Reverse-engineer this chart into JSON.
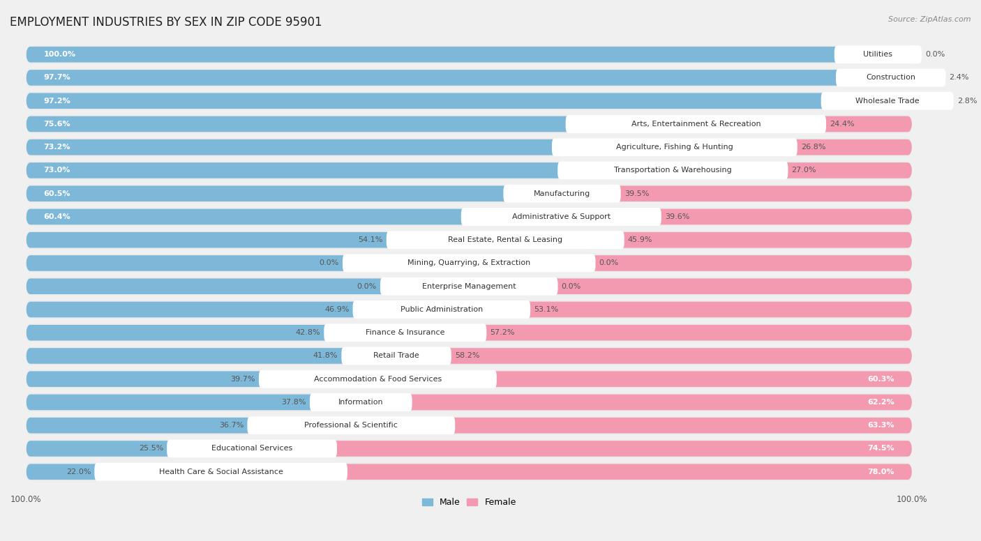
{
  "title": "EMPLOYMENT INDUSTRIES BY SEX IN ZIP CODE 95901",
  "source": "Source: ZipAtlas.com",
  "male_color": "#7eb8d8",
  "female_color": "#f49ab0",
  "bg_color": "#f0f0f0",
  "row_bg_color": "#e8e8e8",
  "bar_bg_light": "#f8f8f8",
  "label_bg": "#ffffff",
  "categories": [
    "Utilities",
    "Construction",
    "Wholesale Trade",
    "Arts, Entertainment & Recreation",
    "Agriculture, Fishing & Hunting",
    "Transportation & Warehousing",
    "Manufacturing",
    "Administrative & Support",
    "Real Estate, Rental & Leasing",
    "Mining, Quarrying, & Extraction",
    "Enterprise Management",
    "Public Administration",
    "Finance & Insurance",
    "Retail Trade",
    "Accommodation & Food Services",
    "Information",
    "Professional & Scientific",
    "Educational Services",
    "Health Care & Social Assistance"
  ],
  "male_pct": [
    100.0,
    97.7,
    97.2,
    75.6,
    73.2,
    73.0,
    60.5,
    60.4,
    54.1,
    0.0,
    0.0,
    46.9,
    42.8,
    41.8,
    39.7,
    37.8,
    36.7,
    25.5,
    22.0
  ],
  "female_pct": [
    0.0,
    2.4,
    2.8,
    24.4,
    26.8,
    27.0,
    39.5,
    39.6,
    45.9,
    0.0,
    0.0,
    53.1,
    57.2,
    58.2,
    60.3,
    62.2,
    63.3,
    74.5,
    78.0
  ],
  "title_fontsize": 12,
  "label_fontsize": 8,
  "pct_fontsize": 8,
  "axis_fontsize": 8.5,
  "legend_fontsize": 9
}
